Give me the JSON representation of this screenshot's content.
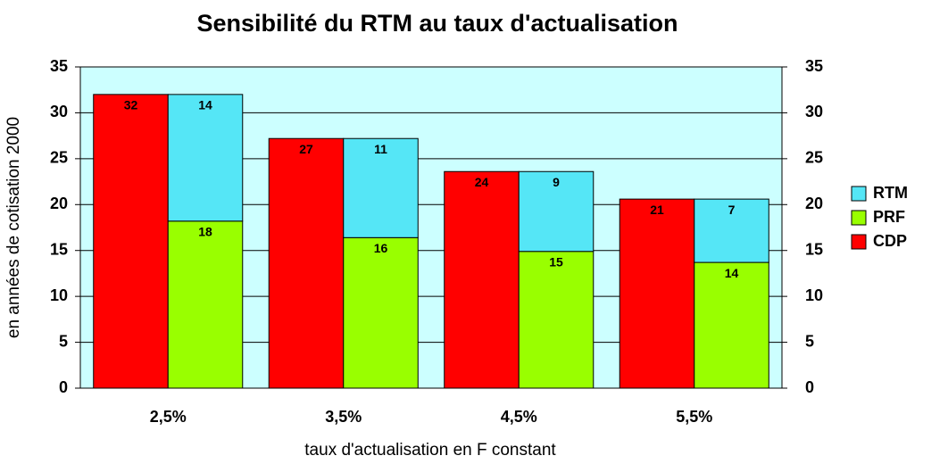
{
  "chart_data": {
    "type": "bar",
    "title": "Sensibilité du RTM au taux d'actualisation",
    "xlabel": "taux d'actualisation en F constant",
    "ylabel": "en années de cotisation 2000",
    "categories": [
      "2,5%",
      "3,5%",
      "4,5%",
      "5,5%"
    ],
    "series": [
      {
        "name": "CDP",
        "color": "#ff0000",
        "values": [
          32,
          27.2,
          23.6,
          20.6
        ],
        "value_labels": [
          "32",
          "27",
          "24",
          "21"
        ]
      },
      {
        "name": "PRF",
        "color": "#99ff00",
        "values": [
          18.2,
          16.4,
          14.9,
          13.7
        ],
        "value_labels": [
          "18",
          "16",
          "15",
          "14"
        ]
      },
      {
        "name": "RTM",
        "color": "#55e6f6",
        "values": [
          13.8,
          10.8,
          8.7,
          6.9
        ],
        "value_labels": [
          "14",
          "11",
          "9",
          "7"
        ]
      }
    ],
    "ylim": [
      0,
      35
    ],
    "yticks": [
      0,
      5,
      10,
      15,
      20,
      25,
      30,
      35
    ],
    "y2lim": [
      0,
      35
    ],
    "y2ticks": [
      0,
      5,
      10,
      15,
      20,
      25,
      30,
      35
    ],
    "grid": true,
    "plot_background": "#ccffff",
    "legend": "right"
  }
}
